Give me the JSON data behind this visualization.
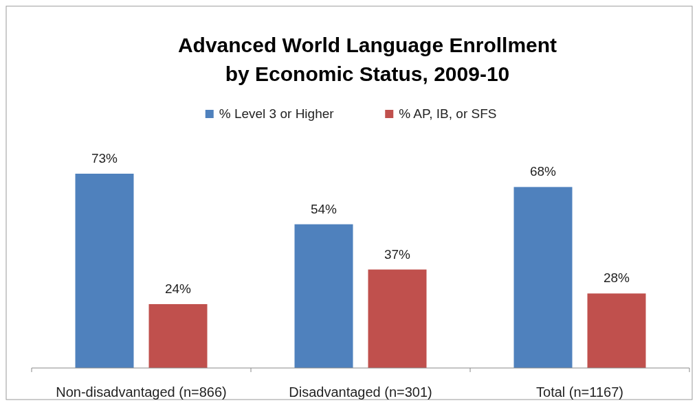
{
  "chart_data": {
    "type": "bar",
    "title": "Advanced World Language Enrollment\nby Economic Status, 2009-10",
    "categories": [
      "Non-disadvantaged (n=866)",
      "Disadvantaged (n=301)",
      "Total (n=1167)"
    ],
    "series": [
      {
        "name": "% Level 3 or Higher",
        "color": "#4f81bd",
        "values": [
          73,
          54,
          68
        ],
        "value_labels": [
          "73%",
          "54%",
          "68%"
        ]
      },
      {
        "name": "% AP, IB, or SFS",
        "color": "#c0504d",
        "values": [
          24,
          37,
          28
        ],
        "value_labels": [
          "24%",
          "37%",
          "28%"
        ]
      }
    ],
    "legend": "top",
    "grid": false
  }
}
